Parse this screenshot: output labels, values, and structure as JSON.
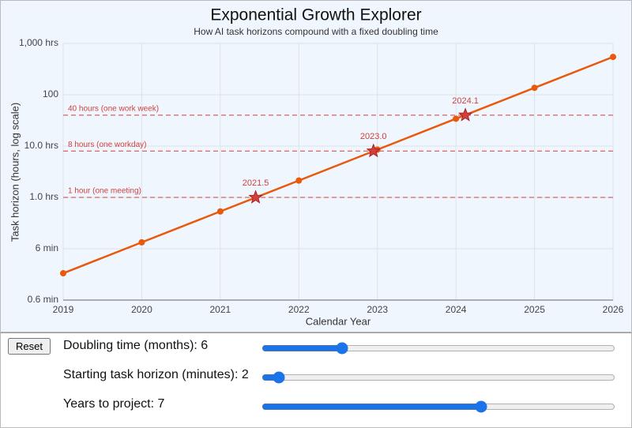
{
  "chart_data": {
    "type": "line",
    "title": "Exponential Growth Explorer",
    "subtitle": "How AI task horizons compound with a fixed doubling time",
    "x_label": "Calendar Year",
    "y_label": "Task horizon (hours, log scale)",
    "log_y": true,
    "grid": true,
    "xlim": [
      2019,
      2026
    ],
    "xticks": [
      2019,
      2020,
      2021,
      2022,
      2023,
      2024,
      2025,
      2026
    ],
    "ylim": [
      0.01,
      1000
    ],
    "yticks": [
      {
        "value": 0.01,
        "label": "0.6 min"
      },
      {
        "value": 0.1,
        "label": "6 min"
      },
      {
        "value": 1,
        "label": "1.0 hrs"
      },
      {
        "value": 10,
        "label": "10.0 hrs"
      },
      100,
      {
        "value": 1000,
        "label": "1,000 hrs"
      }
    ],
    "series": [
      {
        "color": "#e8590c",
        "x": [
          2019,
          2020,
          2021,
          2022,
          2023,
          2024,
          2025,
          2026
        ],
        "values": [
          0.0333,
          0.1333,
          0.5333,
          2.133,
          8.533,
          34.13,
          136.5,
          546.1
        ]
      }
    ],
    "reference_lines": [
      {
        "value": 1,
        "label": "1 hour (one meeting)"
      },
      {
        "value": 8,
        "label": "8 hours (one workday)"
      },
      {
        "value": 40,
        "label": "40 hours (one work week)"
      }
    ],
    "reference_color": "#d23f3f",
    "milestones": {
      "color": "#d23f3f",
      "x": [
        2021.45,
        2022.95,
        2024.12
      ],
      "values": [
        1,
        8,
        40
      ],
      "labels": [
        "2021.5",
        "2023.0",
        "2024.1"
      ]
    }
  },
  "controls": {
    "reset": "Reset",
    "sliders": [
      {
        "label": "Doubling time (months):",
        "value": 6,
        "min": 1,
        "max": 24
      },
      {
        "label": "Starting task horizon (minutes):",
        "value": 2,
        "min": 1,
        "max": 32
      },
      {
        "label": "Years to project:",
        "value": 7,
        "min": 2,
        "max": 10
      }
    ]
  }
}
